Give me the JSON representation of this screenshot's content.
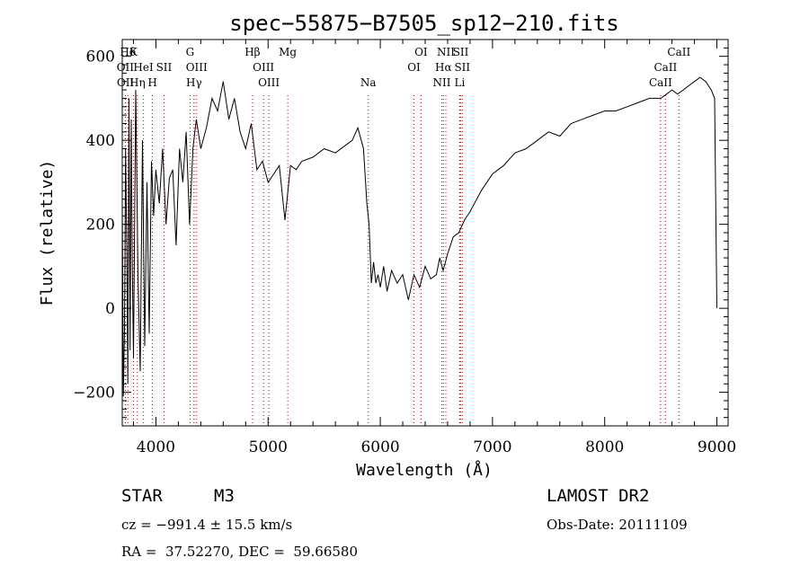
{
  "info": {
    "object_class": "STAR",
    "subclass": "M3",
    "survey": "LAMOST DR2",
    "cz": "cz = −991.4 ± 15.5 km/s",
    "obs_date": "Obs-Date: 20111109",
    "coords": "RA =  37.52270, DEC =  59.66580"
  },
  "chart_data": {
    "type": "line",
    "title": "spec−55875−B7505_sp12−210.fits",
    "xlabel": "Wavelength (Å)",
    "ylabel": "Flux (relative)",
    "xlim": [
      3700,
      9100
    ],
    "ylim": [
      -280,
      640
    ],
    "xticks": [
      4000,
      5000,
      6000,
      7000,
      8000,
      9000
    ],
    "yticks": [
      -200,
      0,
      200,
      400,
      600
    ],
    "line_color": "#000000",
    "marker_color": "#cc0000",
    "series": [
      {
        "x": [
          3700,
          3710,
          3720,
          3730,
          3740,
          3750,
          3760,
          3770,
          3780,
          3790,
          3800,
          3820,
          3840,
          3860,
          3880,
          3900,
          3920,
          3940,
          3960,
          3980,
          4000,
          4030,
          4060,
          4090,
          4120,
          4150,
          4180,
          4210,
          4240,
          4270,
          4300,
          4330,
          4360,
          4400,
          4450,
          4500,
          4550,
          4600,
          4650,
          4700,
          4750,
          4800,
          4850,
          4900,
          4950,
          5000,
          5050,
          5100,
          5150,
          5200,
          5250,
          5300,
          5400,
          5500,
          5600,
          5700,
          5750,
          5800,
          5850,
          5880,
          5900,
          5920,
          5940,
          5960,
          5980,
          6000,
          6030,
          6060,
          6100,
          6150,
          6200,
          6250,
          6300,
          6350,
          6400,
          6450,
          6500,
          6530,
          6560,
          6600,
          6650,
          6700,
          6750,
          6800,
          6900,
          7000,
          7100,
          7200,
          7300,
          7400,
          7500,
          7600,
          7700,
          7800,
          7900,
          8000,
          8100,
          8200,
          8300,
          8400,
          8500,
          8550,
          8600,
          8650,
          8700,
          8750,
          8800,
          8850,
          8900,
          8950,
          8980,
          9000
        ],
        "y": [
          250,
          -210,
          -50,
          380,
          150,
          -180,
          500,
          -100,
          450,
          100,
          -120,
          520,
          80,
          -150,
          400,
          -90,
          300,
          -60,
          350,
          220,
          330,
          250,
          380,
          200,
          310,
          330,
          150,
          380,
          300,
          420,
          200,
          380,
          450,
          380,
          430,
          500,
          470,
          540,
          450,
          500,
          420,
          380,
          440,
          330,
          350,
          300,
          320,
          340,
          210,
          340,
          330,
          350,
          360,
          380,
          370,
          390,
          400,
          430,
          380,
          250,
          200,
          60,
          110,
          60,
          80,
          50,
          100,
          40,
          90,
          60,
          80,
          20,
          80,
          50,
          100,
          70,
          80,
          120,
          90,
          130,
          170,
          180,
          210,
          230,
          280,
          320,
          340,
          370,
          380,
          400,
          420,
          410,
          440,
          450,
          460,
          470,
          470,
          480,
          490,
          500,
          500,
          510,
          520,
          510,
          520,
          530,
          540,
          550,
          540,
          520,
          500,
          0
        ]
      }
    ],
    "line_markers": [
      {
        "label": "Hδ",
        "x": 3750,
        "row": 0
      },
      {
        "label": "K",
        "x": 3800,
        "row": 0
      },
      {
        "label": "G",
        "x": 4304,
        "row": 0
      },
      {
        "label": "Hβ",
        "x": 4861,
        "row": 0
      },
      {
        "label": "Mg",
        "x": 5175,
        "row": 0
      },
      {
        "label": "OI",
        "x": 6363,
        "row": 0
      },
      {
        "label": "NII",
        "x": 6584,
        "row": 0
      },
      {
        "label": "SII",
        "x": 6717,
        "row": 0
      },
      {
        "label": "CaII",
        "x": 8662,
        "row": 0
      },
      {
        "label": "OII",
        "x": 3727,
        "row": 1
      },
      {
        "label": "HeI",
        "x": 3889,
        "row": 1
      },
      {
        "label": "SII",
        "x": 4072,
        "row": 1
      },
      {
        "label": "OIII",
        "x": 4363,
        "row": 1
      },
      {
        "label": "OIII",
        "x": 4959,
        "row": 1
      },
      {
        "label": "OI",
        "x": 6300,
        "row": 1
      },
      {
        "label": "Hα",
        "x": 6563,
        "row": 1
      },
      {
        "label": "SII",
        "x": 6731,
        "row": 1
      },
      {
        "label": "CaII",
        "x": 8542,
        "row": 1
      },
      {
        "label": "OII",
        "x": 3729,
        "row": 2
      },
      {
        "label": "Hη",
        "x": 3835,
        "row": 2
      },
      {
        "label": "H",
        "x": 3969,
        "row": 2
      },
      {
        "label": "Hγ",
        "x": 4340,
        "row": 2
      },
      {
        "label": "OIII",
        "x": 5007,
        "row": 2
      },
      {
        "label": "Na",
        "x": 5893,
        "row": 2
      },
      {
        "label": "NII",
        "x": 6548,
        "row": 2
      },
      {
        "label": "Li",
        "x": 6708,
        "row": 2
      },
      {
        "label": "CaII",
        "x": 8498,
        "row": 2
      }
    ]
  }
}
